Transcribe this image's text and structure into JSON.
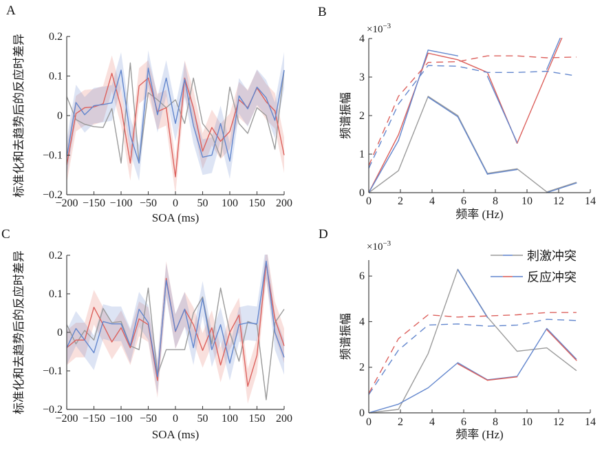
{
  "colors": {
    "blue": "#6286cd",
    "red": "#dc605c",
    "gray": "#9a9a9a",
    "blue_band": "rgba(98,134,205,0.22)",
    "red_band": "rgba(226,112,102,0.22)",
    "axis": "#404040",
    "text": "#1a1a1a"
  },
  "chart_data": [
    {
      "panel": "A",
      "type": "line",
      "xlabel": "SOA (ms)",
      "ylabel": "标准化和去趋势后的反应时差异",
      "xlim": [
        -200,
        200
      ],
      "ylim": [
        -0.2,
        0.2
      ],
      "xtick_values": [
        -200,
        -150,
        -100,
        -50,
        0,
        50,
        100,
        150,
        200
      ],
      "xtick_labels": [
        "−200",
        "−150",
        "−100",
        "−50",
        "0",
        "50",
        "100",
        "150",
        "200"
      ],
      "ytick_values": [
        -0.2,
        -0.1,
        0,
        0.1,
        0.2
      ],
      "ytick_labels": [
        "−0.2",
        "−0.1",
        "0",
        "0.1",
        "0.2"
      ],
      "grid": false,
      "x": [
        -200,
        -183,
        -167,
        -150,
        -133,
        -117,
        -100,
        -83,
        -67,
        -50,
        -33,
        -17,
        0,
        17,
        33,
        50,
        67,
        83,
        100,
        117,
        133,
        150,
        167,
        183,
        200
      ],
      "series": [
        {
          "name": "baseline-rt",
          "color": "gray",
          "style": "solid",
          "values": [
            0.048,
            -0.01,
            -0.022,
            -0.028,
            -0.03,
            0.018,
            -0.12,
            0.133,
            -0.12,
            0.058,
            0.04,
            0.02,
            0.04,
            -0.02,
            0.095,
            -0.02,
            -0.05,
            -0.105,
            0.072,
            -0.02,
            -0.045,
            0.02,
            0.0,
            -0.085,
            0.115
          ]
        },
        {
          "name": "response-conflict-rt",
          "color": "red",
          "style": "solid",
          "band_halfwidth": 0.045,
          "band_color": "red_band",
          "values": [
            -0.125,
            0.005,
            0.02,
            0.022,
            0.03,
            0.107,
            0.02,
            -0.12,
            0.075,
            0.095,
            0.01,
            0.02,
            -0.155,
            0.095,
            0.02,
            -0.09,
            -0.03,
            -0.065,
            -0.04,
            0.04,
            0.02,
            0.07,
            0.035,
            0.012,
            -0.1
          ]
        },
        {
          "name": "stimulus-conflict-rt",
          "color": "blue",
          "style": "solid",
          "band_halfwidth": 0.045,
          "band_color": "blue_band",
          "values": [
            -0.106,
            0.033,
            0.002,
            0.025,
            0.028,
            0.032,
            0.115,
            -0.05,
            -0.12,
            0.12,
            0.002,
            0.095,
            -0.02,
            0.092,
            -0.025,
            -0.105,
            -0.1,
            -0.02,
            -0.115,
            0.05,
            0.017,
            0.072,
            0.045,
            -0.012,
            0.115
          ]
        }
      ]
    },
    {
      "panel": "B",
      "type": "line",
      "xlabel": "频率 (Hz)",
      "ylabel": "频谱振幅",
      "scale_label": "×10⁻³",
      "scale_label_base": "×10",
      "scale_label_exp": "−3",
      "xlim": [
        0,
        14
      ],
      "ylim": [
        0,
        4
      ],
      "xtick_values": [
        0,
        2,
        4,
        6,
        8,
        10,
        12,
        14
      ],
      "xtick_labels": [
        "0",
        "2",
        "4",
        "6",
        "8",
        "10",
        "12",
        "14"
      ],
      "ytick_values": [
        0,
        1,
        2,
        3,
        4
      ],
      "ytick_labels": [
        "0",
        "1",
        "2",
        "3",
        "4"
      ],
      "grid": false,
      "x": [
        0,
        1.875,
        3.75,
        5.625,
        7.5,
        9.375,
        11.25,
        13.125
      ],
      "series": [
        {
          "name": "stimulus-conflict-spectrum-gray",
          "color": "gray",
          "style": "solid",
          "values": [
            0,
            0.57,
            2.5,
            2.0,
            0.5,
            0.62,
            0.02,
            0.27
          ]
        },
        {
          "name": "stimulus-conflict-spectrum-blue",
          "color": "blue",
          "style": "solid",
          "draw_segments": [
            2,
            3,
            4,
            6
          ],
          "values": [
            0,
            0.55,
            2.48,
            1.97,
            0.48,
            0.6,
            0.0,
            0.25
          ]
        },
        {
          "name": "response-conflict-spectrum-red",
          "color": "red",
          "style": "solid",
          "values": [
            0,
            1.5,
            3.62,
            3.45,
            3.12,
            1.28,
            3.1,
            4.9
          ]
        },
        {
          "name": "response-conflict-spectrum-blue",
          "color": "blue",
          "style": "solid",
          "draw_segments": [
            0,
            1,
            2,
            4,
            6
          ],
          "values": [
            0,
            1.35,
            3.7,
            3.55,
            3.02,
            1.3,
            3.2,
            5.0
          ]
        },
        {
          "name": "stimulus-conflict-threshold",
          "color": "blue",
          "style": "dashed",
          "values": [
            0.63,
            2.3,
            3.3,
            3.28,
            3.12,
            3.12,
            3.15,
            3.03
          ]
        },
        {
          "name": "response-conflict-threshold",
          "color": "red",
          "style": "dashed",
          "values": [
            0.7,
            2.5,
            3.38,
            3.4,
            3.55,
            3.55,
            3.5,
            3.52
          ]
        }
      ]
    },
    {
      "panel": "C",
      "type": "line",
      "xlabel": "SOA (ms)",
      "ylabel": "标准化和去趋势后的反应时差异",
      "xlim": [
        -200,
        200
      ],
      "ylim": [
        -0.2,
        0.2
      ],
      "xtick_values": [
        -200,
        -150,
        -100,
        -50,
        0,
        50,
        100,
        150,
        200
      ],
      "xtick_labels": [
        "−200",
        "−150",
        "−100",
        "−50",
        "0",
        "50",
        "100",
        "150",
        "200"
      ],
      "ytick_values": [
        -0.2,
        -0.1,
        0,
        0.1,
        0.2
      ],
      "ytick_labels": [
        "−0.2",
        "−0.1",
        "0",
        "0.1",
        "0.2"
      ],
      "grid": false,
      "x": [
        -200,
        -183,
        -167,
        -150,
        -133,
        -117,
        -100,
        -83,
        -67,
        -50,
        -33,
        -17,
        0,
        17,
        33,
        50,
        67,
        83,
        100,
        117,
        133,
        150,
        167,
        183,
        200
      ],
      "series": [
        {
          "name": "baseline-rt",
          "color": "gray",
          "style": "solid",
          "values": [
            0.02,
            -0.03,
            0.005,
            -0.02,
            0.062,
            0.025,
            0.028,
            -0.035,
            -0.045,
            0.115,
            -0.11,
            -0.045,
            -0.045,
            -0.045,
            0.05,
            0.092,
            -0.03,
            0.115,
            0.0,
            -0.075,
            0.028,
            0.02,
            -0.175,
            0.025,
            0.06
          ]
        },
        {
          "name": "response-conflict-rt",
          "color": "red",
          "style": "solid",
          "band_halfwidth": 0.045,
          "band_color": "red_band",
          "values": [
            -0.04,
            -0.02,
            -0.02,
            0.065,
            0.02,
            -0.025,
            0.012,
            -0.04,
            0.035,
            0.02,
            -0.125,
            0.14,
            0.002,
            0.06,
            0.02,
            -0.047,
            0.012,
            -0.085,
            0.0,
            0.045,
            -0.14,
            -0.06,
            0.18,
            0.035,
            -0.035
          ]
        },
        {
          "name": "stimulus-conflict-rt",
          "color": "blue",
          "style": "solid",
          "band_halfwidth": 0.045,
          "band_color": "blue_band",
          "values": [
            -0.04,
            0.01,
            -0.02,
            -0.053,
            0.028,
            0.022,
            0.022,
            -0.035,
            0.06,
            0.025,
            -0.115,
            0.135,
            0.003,
            0.06,
            -0.04,
            0.088,
            -0.045,
            0.02,
            -0.08,
            0.02,
            0.025,
            0.022,
            0.185,
            0.0,
            -0.065
          ]
        }
      ]
    },
    {
      "panel": "D",
      "type": "line",
      "xlabel": "频率 (Hz)",
      "ylabel": "频谱振幅",
      "scale_label": "×10⁻³",
      "scale_label_base": "×10",
      "scale_label_exp": "−3",
      "xlim": [
        0,
        14
      ],
      "ylim": [
        0,
        6.7
      ],
      "xtick_values": [
        0,
        2,
        4,
        6,
        8,
        10,
        12,
        14
      ],
      "xtick_labels": [
        "0",
        "2",
        "4",
        "6",
        "8",
        "10",
        "12",
        "14"
      ],
      "ytick_values": [
        0,
        2,
        4,
        6
      ],
      "ytick_labels": [
        "0",
        "2",
        "4",
        "6"
      ],
      "grid": false,
      "x": [
        0,
        1.875,
        3.75,
        5.625,
        7.5,
        9.375,
        11.25,
        13.125
      ],
      "legend": {
        "items": [
          {
            "label": "刺激冲突",
            "sample_colors": [
              "gray",
              "blue",
              "gray"
            ]
          },
          {
            "label": "反应冲突",
            "sample_colors": [
              "blue",
              "red",
              "blue"
            ]
          }
        ]
      },
      "series": [
        {
          "name": "stimulus-conflict-spectrum-gray",
          "color": "gray",
          "style": "solid",
          "values": [
            0,
            0.15,
            2.6,
            6.3,
            4.2,
            2.7,
            2.85,
            1.85
          ]
        },
        {
          "name": "stimulus-conflict-spectrum-blue",
          "color": "blue",
          "style": "solid",
          "draw_segments": [
            3
          ],
          "values": [
            0,
            0.18,
            2.62,
            6.28,
            4.18,
            2.68,
            2.83,
            1.83
          ]
        },
        {
          "name": "response-conflict-spectrum-blue",
          "color": "blue",
          "style": "solid",
          "values": [
            0,
            0.38,
            1.1,
            2.2,
            1.45,
            1.6,
            3.7,
            2.35
          ]
        },
        {
          "name": "response-conflict-spectrum-red",
          "color": "red",
          "style": "solid",
          "draw_segments": [
            3,
            4,
            6
          ],
          "values": [
            0.05,
            0.35,
            1.05,
            2.15,
            1.43,
            1.58,
            3.65,
            2.3
          ]
        },
        {
          "name": "stimulus-conflict-threshold",
          "color": "blue",
          "style": "dashed",
          "values": [
            0.8,
            2.75,
            3.85,
            3.9,
            3.8,
            3.85,
            4.1,
            4.05
          ]
        },
        {
          "name": "response-conflict-threshold",
          "color": "red",
          "style": "dashed",
          "values": [
            0.85,
            3.25,
            4.3,
            4.2,
            4.25,
            4.3,
            4.4,
            4.4
          ]
        }
      ]
    }
  ]
}
